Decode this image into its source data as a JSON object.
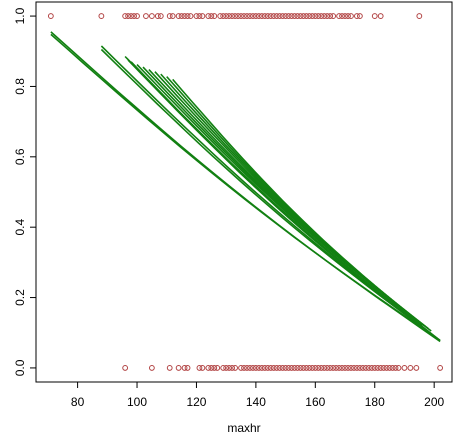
{
  "chart_data": {
    "type": "scatter",
    "title": "",
    "xlabel": "maxhr",
    "ylabel": "",
    "xlim": [
      66,
      206
    ],
    "ylim": [
      -0.04,
      1.04
    ],
    "xticks": [
      "80",
      "100",
      "120",
      "140",
      "160",
      "180",
      "200"
    ],
    "yticks": [
      "0.0",
      "0.2",
      "0.4",
      "0.6",
      "0.8",
      "1.0"
    ],
    "grid": false,
    "legend": "none",
    "colors": {
      "points": "#b24444",
      "curves": "#128012",
      "axis": "#000000"
    },
    "points_y1": [
      71,
      88,
      96,
      97,
      98,
      99,
      100,
      103,
      105,
      107,
      108,
      111,
      112,
      114,
      115,
      116,
      117,
      118,
      120,
      121,
      122,
      124,
      125,
      126,
      128,
      129,
      130,
      131,
      132,
      133,
      134,
      135,
      136,
      137,
      138,
      139,
      140,
      141,
      142,
      143,
      144,
      145,
      146,
      147,
      148,
      149,
      150,
      151,
      152,
      153,
      154,
      155,
      156,
      157,
      158,
      159,
      160,
      161,
      162,
      163,
      164,
      165,
      166,
      168,
      169,
      170,
      171,
      172,
      174,
      175,
      180,
      182,
      195
    ],
    "points_y0": [
      96,
      105,
      111,
      114,
      116,
      117,
      121,
      122,
      124,
      125,
      126,
      127,
      129,
      130,
      131,
      132,
      133,
      135,
      136,
      137,
      138,
      139,
      140,
      141,
      142,
      143,
      144,
      145,
      146,
      147,
      148,
      149,
      150,
      151,
      152,
      153,
      154,
      155,
      156,
      157,
      158,
      159,
      160,
      161,
      162,
      163,
      164,
      165,
      166,
      167,
      168,
      169,
      170,
      171,
      172,
      173,
      174,
      175,
      176,
      177,
      178,
      179,
      180,
      181,
      182,
      183,
      184,
      185,
      186,
      187,
      188,
      190,
      192,
      194,
      202
    ],
    "curves": [
      {
        "x": [
          71,
          202
        ],
        "start": 0.955,
        "end": 0.075
      },
      {
        "x": [
          71,
          202
        ],
        "start": 0.948,
        "end": 0.078
      },
      {
        "x": [
          88,
          202
        ],
        "start": 0.915,
        "end": 0.078
      },
      {
        "x": [
          88,
          200
        ],
        "start": 0.905,
        "end": 0.09
      },
      {
        "x": [
          96,
          202
        ],
        "start": 0.885,
        "end": 0.078
      },
      {
        "x": [
          97,
          197
        ],
        "start": 0.875,
        "end": 0.11
      },
      {
        "x": [
          98,
          196
        ],
        "start": 0.87,
        "end": 0.12
      },
      {
        "x": [
          100,
          199
        ],
        "start": 0.862,
        "end": 0.105
      },
      {
        "x": [
          102,
          198
        ],
        "start": 0.855,
        "end": 0.112
      },
      {
        "x": [
          104,
          197
        ],
        "start": 0.848,
        "end": 0.118
      },
      {
        "x": [
          106,
          196
        ],
        "start": 0.842,
        "end": 0.124
      },
      {
        "x": [
          108,
          195
        ],
        "start": 0.835,
        "end": 0.13
      },
      {
        "x": [
          110,
          194
        ],
        "start": 0.828,
        "end": 0.136
      },
      {
        "x": [
          112,
          193
        ],
        "start": 0.82,
        "end": 0.142
      }
    ]
  }
}
